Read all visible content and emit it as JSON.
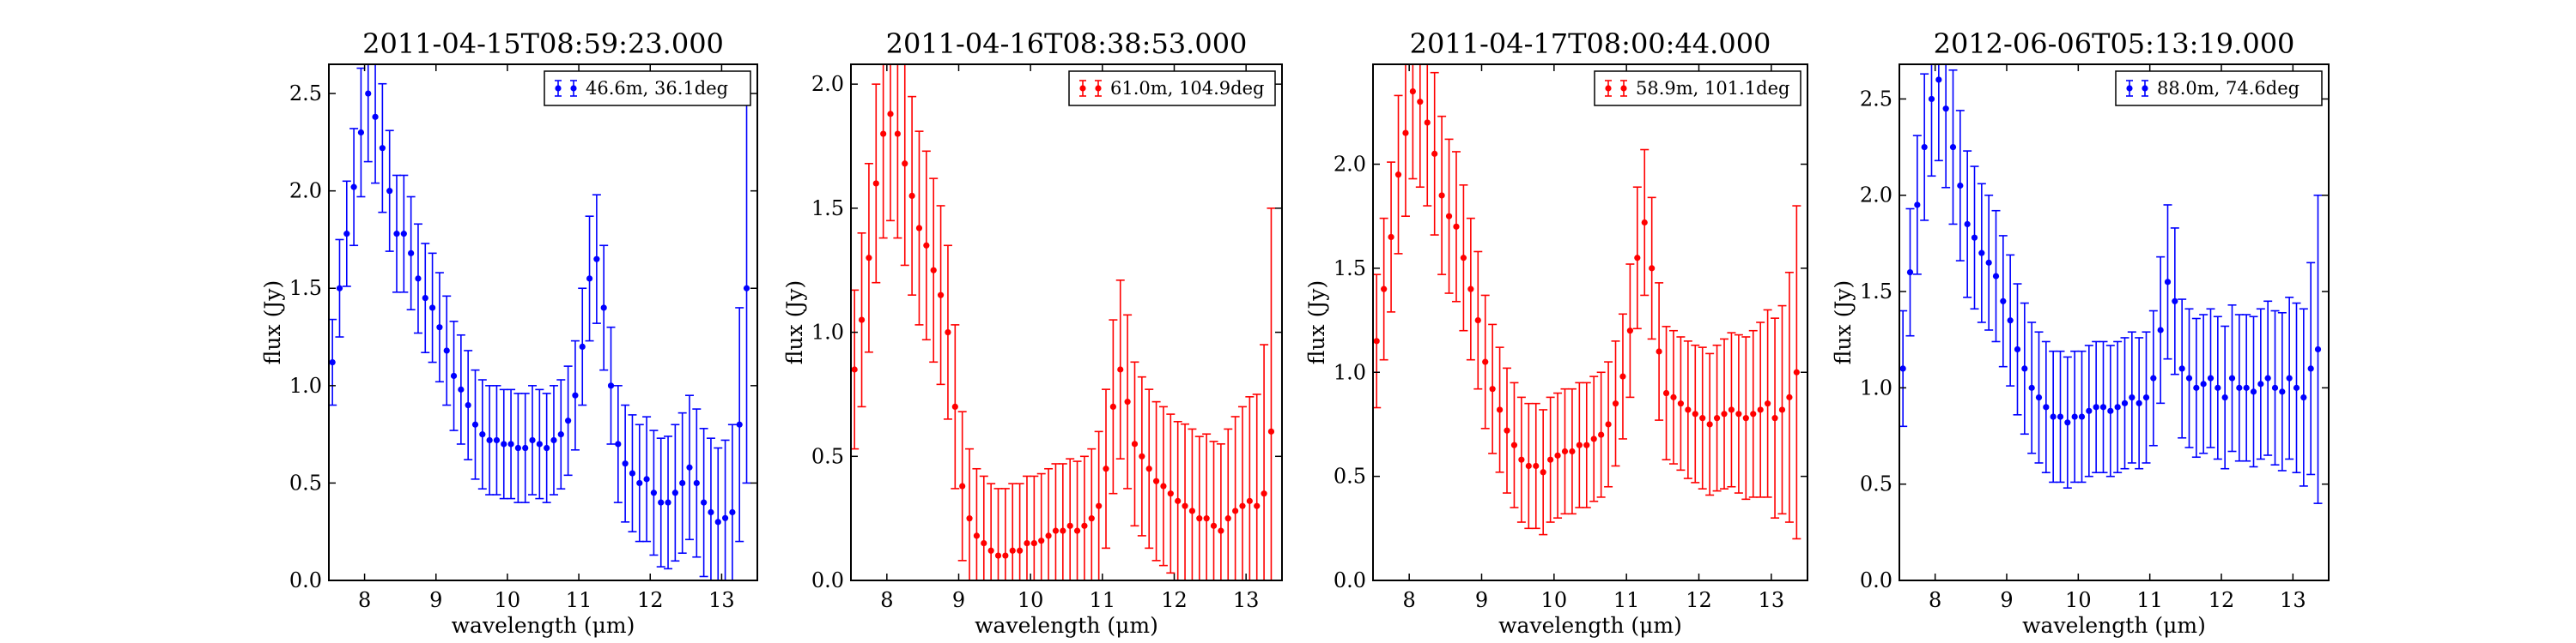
{
  "chart_data": [
    {
      "type": "scatter",
      "title": "2011-04-15T08:59:23.000",
      "xlabel": "wavelength (μm)",
      "ylabel": "flux (Jy)",
      "xlim": [
        7.5,
        13.5
      ],
      "ylim": [
        0.0,
        2.65
      ],
      "xticks": [
        8,
        9,
        10,
        11,
        12,
        13
      ],
      "yticks": [
        0.0,
        0.5,
        1.0,
        1.5,
        2.0,
        2.5
      ],
      "grid": false,
      "legend_position": "top-right",
      "series": [
        {
          "name": "46.6m, 36.1deg",
          "color": "#0000ff",
          "x": [
            7.55,
            7.65,
            7.75,
            7.85,
            7.95,
            8.05,
            8.15,
            8.25,
            8.35,
            8.45,
            8.55,
            8.65,
            8.75,
            8.85,
            8.95,
            9.05,
            9.15,
            9.25,
            9.35,
            9.45,
            9.55,
            9.65,
            9.75,
            9.85,
            9.95,
            10.05,
            10.15,
            10.25,
            10.35,
            10.45,
            10.55,
            10.65,
            10.75,
            10.85,
            10.95,
            11.05,
            11.15,
            11.25,
            11.35,
            11.45,
            11.55,
            11.65,
            11.75,
            11.85,
            11.95,
            12.05,
            12.15,
            12.25,
            12.35,
            12.45,
            12.55,
            12.65,
            12.75,
            12.85,
            12.95,
            13.05,
            13.15,
            13.25,
            13.35
          ],
          "y": [
            1.12,
            1.5,
            1.78,
            2.02,
            2.3,
            2.5,
            2.38,
            2.22,
            2.0,
            1.78,
            1.78,
            1.68,
            1.55,
            1.45,
            1.4,
            1.3,
            1.18,
            1.05,
            0.98,
            0.9,
            0.8,
            0.75,
            0.72,
            0.72,
            0.7,
            0.7,
            0.68,
            0.68,
            0.72,
            0.7,
            0.68,
            0.72,
            0.75,
            0.82,
            0.95,
            1.2,
            1.55,
            1.65,
            1.4,
            1.0,
            0.7,
            0.6,
            0.55,
            0.5,
            0.52,
            0.45,
            0.4,
            0.4,
            0.45,
            0.5,
            0.58,
            0.5,
            0.4,
            0.35,
            0.3,
            0.32,
            0.35,
            0.8,
            1.5
          ],
          "error": [
            0.22,
            0.25,
            0.27,
            0.3,
            0.33,
            0.35,
            0.34,
            0.33,
            0.31,
            0.3,
            0.3,
            0.29,
            0.28,
            0.28,
            0.28,
            0.28,
            0.28,
            0.28,
            0.28,
            0.28,
            0.28,
            0.28,
            0.28,
            0.28,
            0.28,
            0.28,
            0.28,
            0.28,
            0.28,
            0.28,
            0.28,
            0.28,
            0.28,
            0.28,
            0.28,
            0.3,
            0.32,
            0.33,
            0.32,
            0.3,
            0.3,
            0.3,
            0.3,
            0.3,
            0.32,
            0.32,
            0.33,
            0.34,
            0.35,
            0.36,
            0.37,
            0.38,
            0.38,
            0.38,
            0.38,
            0.4,
            0.45,
            0.6,
            1.0
          ]
        }
      ]
    },
    {
      "type": "scatter",
      "title": "2011-04-16T08:38:53.000",
      "xlabel": "wavelength (μm)",
      "ylabel": "flux (Jy)",
      "xlim": [
        7.5,
        13.5
      ],
      "ylim": [
        0.0,
        2.08
      ],
      "xticks": [
        8,
        9,
        10,
        11,
        12,
        13
      ],
      "yticks": [
        0.0,
        0.5,
        1.0,
        1.5,
        2.0
      ],
      "grid": false,
      "legend_position": "top-right",
      "series": [
        {
          "name": "61.0m, 104.9deg",
          "color": "#ff0000",
          "x": [
            7.55,
            7.65,
            7.75,
            7.85,
            7.95,
            8.05,
            8.15,
            8.25,
            8.35,
            8.45,
            8.55,
            8.65,
            8.75,
            8.85,
            8.95,
            9.05,
            9.15,
            9.25,
            9.35,
            9.45,
            9.55,
            9.65,
            9.75,
            9.85,
            9.95,
            10.05,
            10.15,
            10.25,
            10.35,
            10.45,
            10.55,
            10.65,
            10.75,
            10.85,
            10.95,
            11.05,
            11.15,
            11.25,
            11.35,
            11.45,
            11.55,
            11.65,
            11.75,
            11.85,
            11.95,
            12.05,
            12.15,
            12.25,
            12.35,
            12.45,
            12.55,
            12.65,
            12.75,
            12.85,
            12.95,
            13.05,
            13.15,
            13.25,
            13.35
          ],
          "y": [
            0.85,
            1.05,
            1.3,
            1.6,
            1.8,
            1.88,
            1.8,
            1.68,
            1.55,
            1.42,
            1.35,
            1.25,
            1.15,
            1.0,
            0.7,
            0.38,
            0.25,
            0.18,
            0.15,
            0.12,
            0.1,
            0.1,
            0.12,
            0.12,
            0.15,
            0.15,
            0.16,
            0.18,
            0.2,
            0.2,
            0.22,
            0.2,
            0.22,
            0.25,
            0.3,
            0.45,
            0.7,
            0.85,
            0.72,
            0.55,
            0.5,
            0.45,
            0.4,
            0.38,
            0.35,
            0.32,
            0.3,
            0.28,
            0.25,
            0.25,
            0.22,
            0.2,
            0.25,
            0.28,
            0.3,
            0.32,
            0.3,
            0.35,
            0.6
          ],
          "error": [
            0.32,
            0.35,
            0.38,
            0.4,
            0.42,
            0.43,
            0.42,
            0.41,
            0.4,
            0.39,
            0.38,
            0.37,
            0.36,
            0.35,
            0.33,
            0.3,
            0.28,
            0.27,
            0.27,
            0.27,
            0.27,
            0.27,
            0.27,
            0.27,
            0.27,
            0.27,
            0.27,
            0.27,
            0.27,
            0.27,
            0.27,
            0.28,
            0.28,
            0.28,
            0.3,
            0.32,
            0.35,
            0.36,
            0.35,
            0.33,
            0.32,
            0.32,
            0.32,
            0.32,
            0.32,
            0.32,
            0.33,
            0.33,
            0.33,
            0.34,
            0.34,
            0.35,
            0.36,
            0.38,
            0.4,
            0.42,
            0.45,
            0.6,
            0.9
          ]
        }
      ]
    },
    {
      "type": "scatter",
      "title": "2011-04-17T08:00:44.000",
      "xlabel": "wavelength (μm)",
      "ylabel": "flux (Jy)",
      "xlim": [
        7.5,
        13.5
      ],
      "ylim": [
        0.0,
        2.48
      ],
      "xticks": [
        8,
        9,
        10,
        11,
        12,
        13
      ],
      "yticks": [
        0.0,
        0.5,
        1.0,
        1.5,
        2.0
      ],
      "grid": false,
      "legend_position": "top-right",
      "series": [
        {
          "name": "58.9m, 101.1deg",
          "color": "#ff0000",
          "x": [
            7.55,
            7.65,
            7.75,
            7.85,
            7.95,
            8.05,
            8.15,
            8.25,
            8.35,
            8.45,
            8.55,
            8.65,
            8.75,
            8.85,
            8.95,
            9.05,
            9.15,
            9.25,
            9.35,
            9.45,
            9.55,
            9.65,
            9.75,
            9.85,
            9.95,
            10.05,
            10.15,
            10.25,
            10.35,
            10.45,
            10.55,
            10.65,
            10.75,
            10.85,
            10.95,
            11.05,
            11.15,
            11.25,
            11.35,
            11.45,
            11.55,
            11.65,
            11.75,
            11.85,
            11.95,
            12.05,
            12.15,
            12.25,
            12.35,
            12.45,
            12.55,
            12.65,
            12.75,
            12.85,
            12.95,
            13.05,
            13.15,
            13.25,
            13.35
          ],
          "y": [
            1.15,
            1.4,
            1.65,
            1.95,
            2.15,
            2.35,
            2.3,
            2.2,
            2.05,
            1.85,
            1.75,
            1.7,
            1.55,
            1.4,
            1.25,
            1.05,
            0.92,
            0.82,
            0.72,
            0.65,
            0.58,
            0.55,
            0.55,
            0.52,
            0.58,
            0.6,
            0.62,
            0.62,
            0.65,
            0.65,
            0.68,
            0.7,
            0.75,
            0.85,
            0.98,
            1.2,
            1.55,
            1.72,
            1.5,
            1.1,
            0.9,
            0.88,
            0.85,
            0.82,
            0.8,
            0.78,
            0.75,
            0.78,
            0.8,
            0.82,
            0.8,
            0.78,
            0.8,
            0.82,
            0.85,
            0.78,
            0.82,
            0.88,
            1.0
          ],
          "error": [
            0.32,
            0.34,
            0.36,
            0.38,
            0.4,
            0.42,
            0.41,
            0.4,
            0.39,
            0.38,
            0.37,
            0.36,
            0.35,
            0.34,
            0.33,
            0.32,
            0.31,
            0.3,
            0.3,
            0.3,
            0.3,
            0.3,
            0.3,
            0.3,
            0.3,
            0.3,
            0.3,
            0.3,
            0.3,
            0.3,
            0.3,
            0.3,
            0.3,
            0.3,
            0.3,
            0.32,
            0.34,
            0.35,
            0.34,
            0.33,
            0.32,
            0.32,
            0.32,
            0.33,
            0.33,
            0.34,
            0.34,
            0.35,
            0.36,
            0.37,
            0.38,
            0.39,
            0.4,
            0.42,
            0.45,
            0.48,
            0.5,
            0.6,
            0.8
          ]
        }
      ]
    },
    {
      "type": "scatter",
      "title": "2012-06-06T05:13:19.000",
      "xlabel": "wavelength (μm)",
      "ylabel": "flux (Jy)",
      "xlim": [
        7.5,
        13.5
      ],
      "ylim": [
        0.0,
        2.68
      ],
      "xticks": [
        8,
        9,
        10,
        11,
        12,
        13
      ],
      "yticks": [
        0.0,
        0.5,
        1.0,
        1.5,
        2.0,
        2.5
      ],
      "grid": false,
      "legend_position": "top-right",
      "series": [
        {
          "name": "88.0m, 74.6deg",
          "color": "#0000ff",
          "x": [
            7.55,
            7.65,
            7.75,
            7.85,
            7.95,
            8.05,
            8.15,
            8.25,
            8.35,
            8.45,
            8.55,
            8.65,
            8.75,
            8.85,
            8.95,
            9.05,
            9.15,
            9.25,
            9.35,
            9.45,
            9.55,
            9.65,
            9.75,
            9.85,
            9.95,
            10.05,
            10.15,
            10.25,
            10.35,
            10.45,
            10.55,
            10.65,
            10.75,
            10.85,
            10.95,
            11.05,
            11.15,
            11.25,
            11.35,
            11.45,
            11.55,
            11.65,
            11.75,
            11.85,
            11.95,
            12.05,
            12.15,
            12.25,
            12.35,
            12.45,
            12.55,
            12.65,
            12.75,
            12.85,
            12.95,
            13.05,
            13.15,
            13.25,
            13.35
          ],
          "y": [
            1.1,
            1.6,
            1.95,
            2.25,
            2.5,
            2.6,
            2.45,
            2.25,
            2.05,
            1.85,
            1.78,
            1.7,
            1.65,
            1.58,
            1.45,
            1.35,
            1.2,
            1.1,
            1.0,
            0.95,
            0.9,
            0.85,
            0.85,
            0.82,
            0.85,
            0.85,
            0.88,
            0.9,
            0.9,
            0.88,
            0.9,
            0.92,
            0.95,
            0.92,
            0.95,
            1.05,
            1.3,
            1.55,
            1.45,
            1.1,
            1.05,
            1.0,
            1.02,
            1.05,
            1.0,
            0.95,
            1.05,
            1.0,
            1.0,
            0.98,
            1.02,
            1.05,
            1.0,
            0.98,
            1.05,
            1.0,
            0.95,
            1.1,
            1.2
          ],
          "error": [
            0.3,
            0.33,
            0.36,
            0.38,
            0.4,
            0.42,
            0.41,
            0.4,
            0.39,
            0.38,
            0.37,
            0.36,
            0.35,
            0.34,
            0.34,
            0.34,
            0.34,
            0.34,
            0.34,
            0.34,
            0.34,
            0.34,
            0.34,
            0.34,
            0.34,
            0.34,
            0.34,
            0.34,
            0.34,
            0.34,
            0.34,
            0.34,
            0.34,
            0.34,
            0.34,
            0.35,
            0.38,
            0.4,
            0.38,
            0.36,
            0.36,
            0.36,
            0.36,
            0.36,
            0.37,
            0.37,
            0.38,
            0.38,
            0.38,
            0.39,
            0.39,
            0.4,
            0.4,
            0.41,
            0.42,
            0.44,
            0.46,
            0.55,
            0.8
          ]
        }
      ]
    }
  ]
}
